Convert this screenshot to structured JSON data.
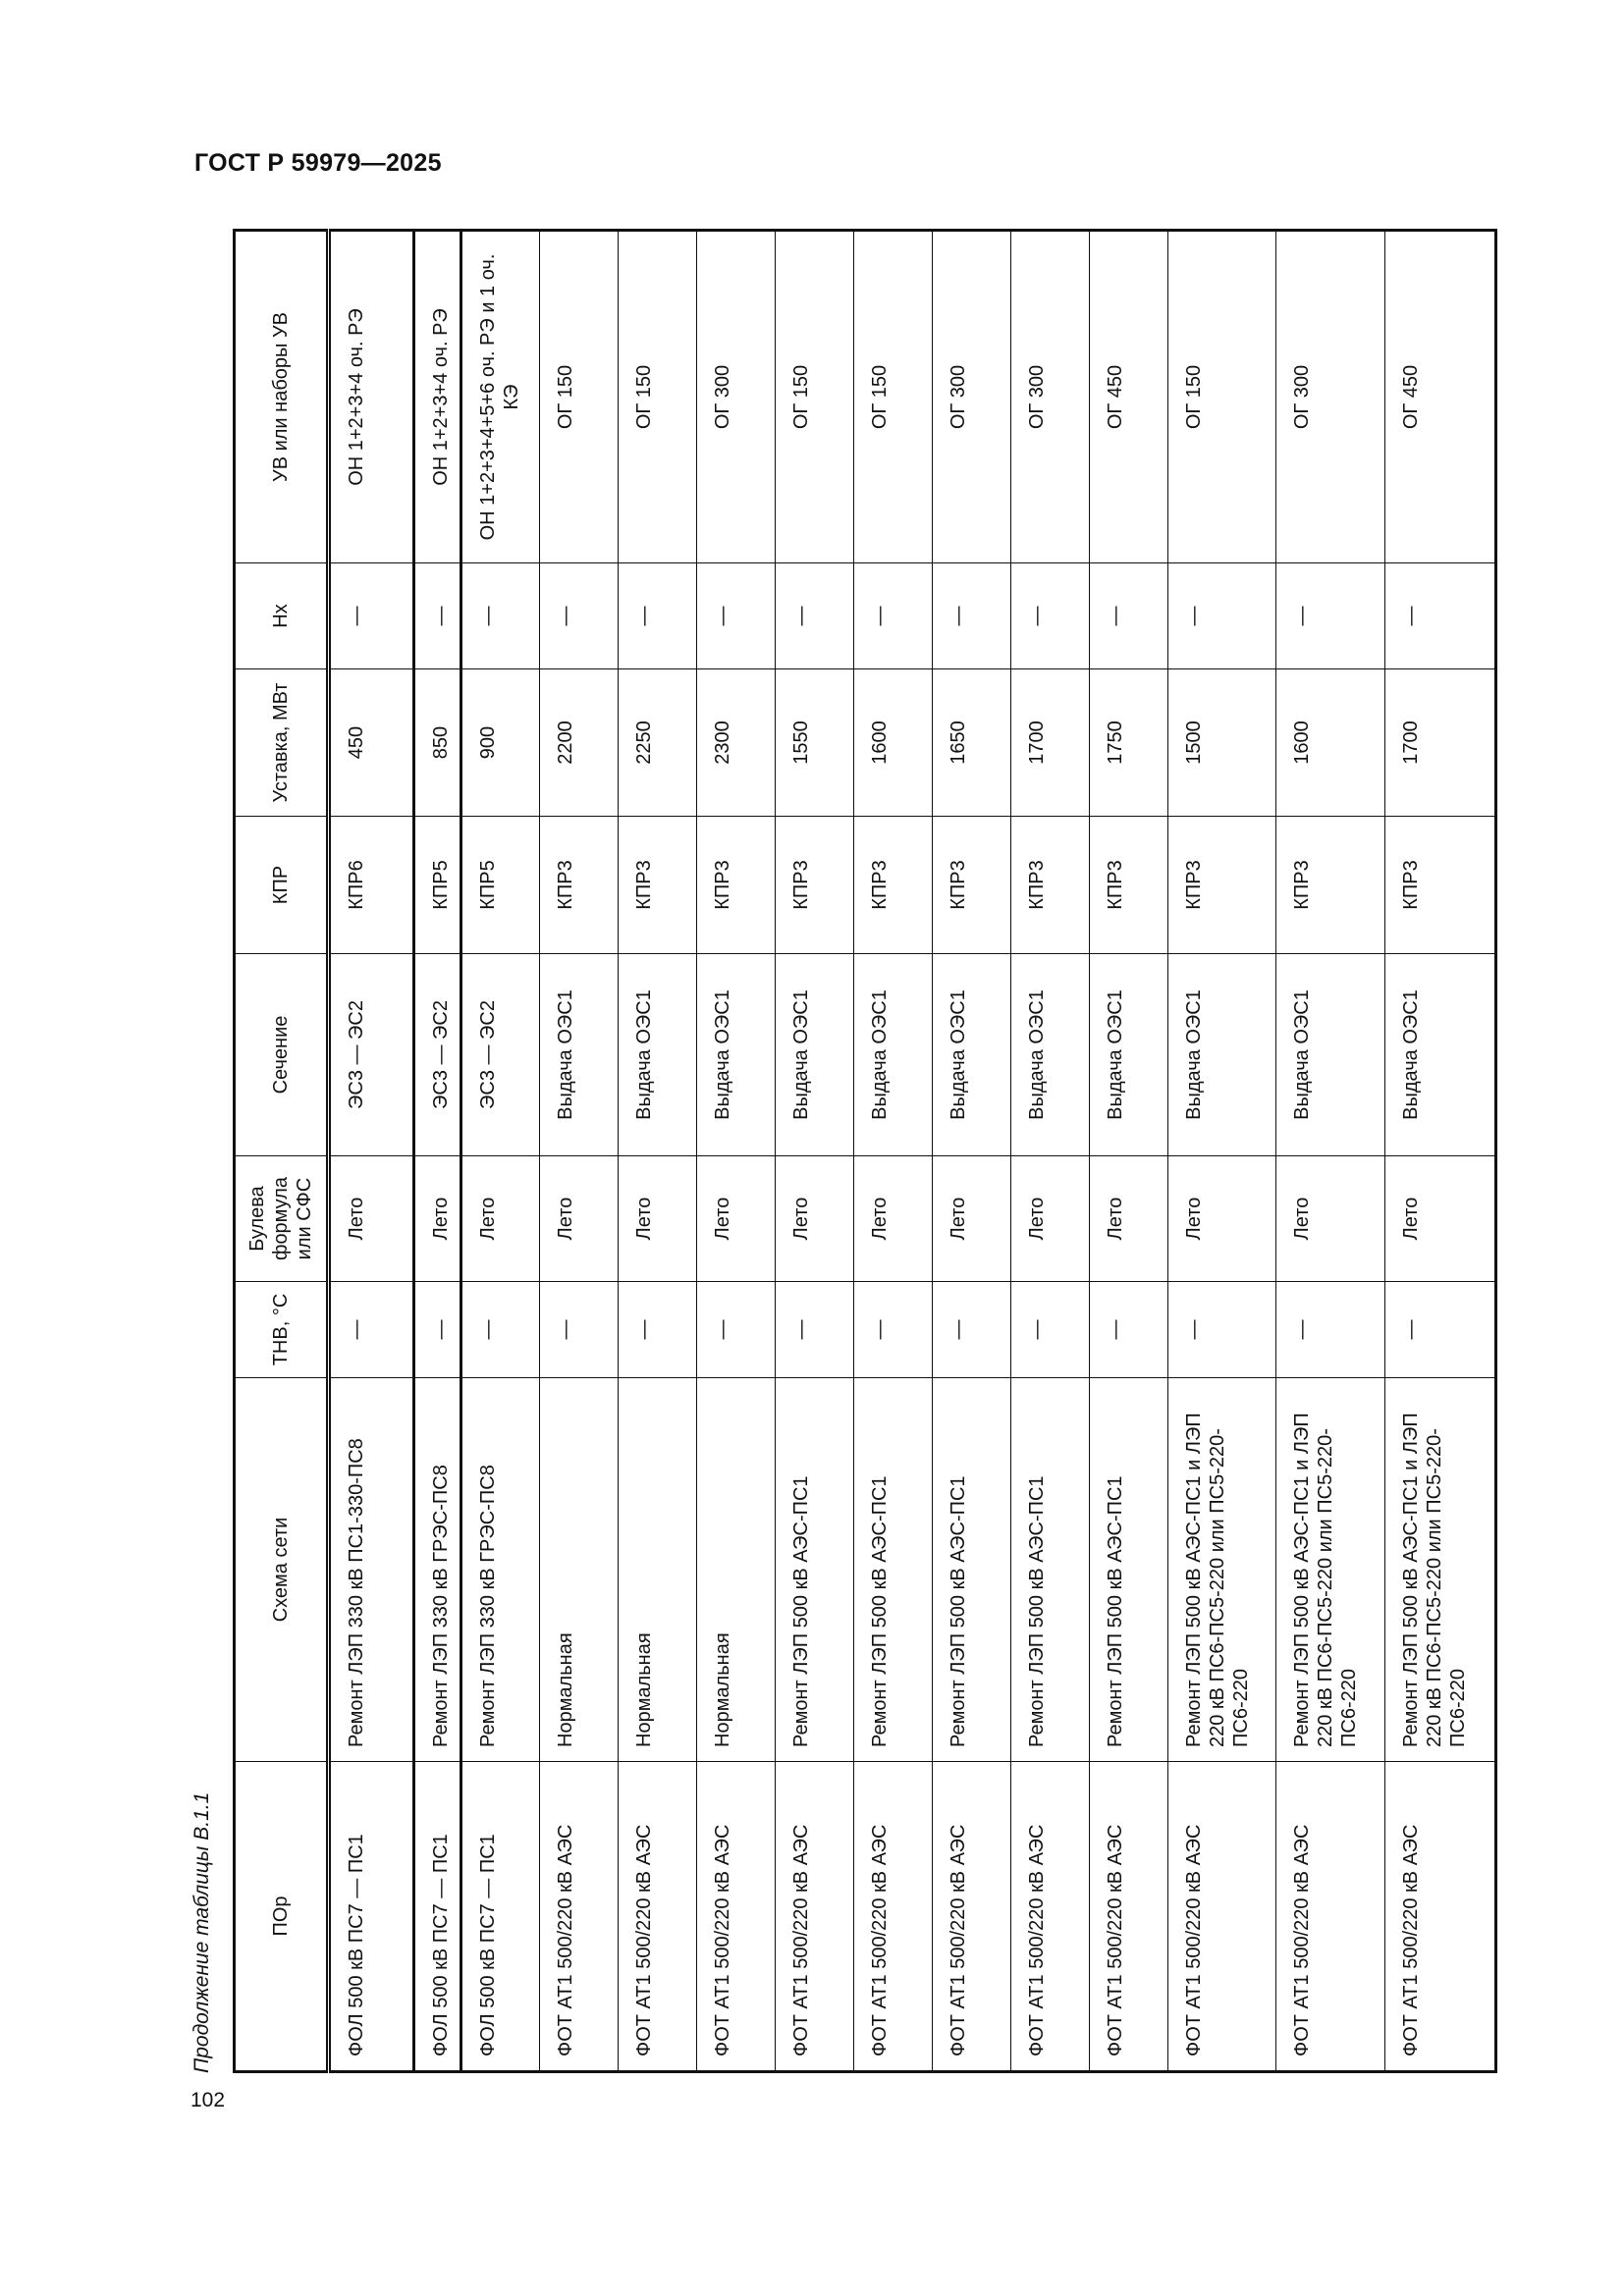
{
  "document": {
    "header": "ГОСТ Р 59979—2025",
    "caption": "Продолжение таблицы В.1.1",
    "page_number": "102"
  },
  "table": {
    "columns": [
      "ПОр",
      "Схема сети",
      "ТНВ, °С",
      "Булева формула или СФС",
      "Сечение",
      "КПР",
      "Уставка, МВт",
      "Нх",
      "УВ или наборы УВ"
    ],
    "rows": [
      [
        "ФОЛ 500 кВ ПС7 — ПС1",
        "Ремонт ЛЭП 330 кВ ПС1-330-ПС8",
        "—",
        "Лето",
        "ЭС3 — ЭС2",
        "КПР6",
        "450",
        "—",
        "ОН 1+2+3+4 оч. РЭ"
      ],
      [
        "ФОЛ 500 кВ ПС7 — ПС1",
        "Ремонт ЛЭП 330 кВ ГРЭС-ПС8",
        "—",
        "Лето",
        "ЭС3 — ЭС2",
        "КПР5",
        "850",
        "—",
        "ОН 1+2+3+4 оч. РЭ"
      ],
      [
        "ФОЛ 500 кВ ПС7 — ПС1",
        "Ремонт ЛЭП 330 кВ ГРЭС-ПС8",
        "—",
        "Лето",
        "ЭС3 — ЭС2",
        "КПР5",
        "900",
        "—",
        "ОН 1+2+3+4+5+6 оч. РЭ и 1 оч. КЭ"
      ],
      [
        "ФОТ АТ1 500/220 кВ АЭС",
        "Нормальная",
        "—",
        "Лето",
        "Выдача ОЭС1",
        "КПР3",
        "2200",
        "—",
        "ОГ 150"
      ],
      [
        "ФОТ АТ1 500/220 кВ АЭС",
        "Нормальная",
        "—",
        "Лето",
        "Выдача ОЭС1",
        "КПР3",
        "2250",
        "—",
        "ОГ 150"
      ],
      [
        "ФОТ АТ1 500/220 кВ АЭС",
        "Нормальная",
        "—",
        "Лето",
        "Выдача ОЭС1",
        "КПР3",
        "2300",
        "—",
        "ОГ 300"
      ],
      [
        "ФОТ АТ1 500/220 кВ АЭС",
        "Ремонт ЛЭП 500 кВ АЭС-ПС1",
        "—",
        "Лето",
        "Выдача ОЭС1",
        "КПР3",
        "1550",
        "—",
        "ОГ 150"
      ],
      [
        "ФОТ АТ1 500/220 кВ АЭС",
        "Ремонт ЛЭП 500 кВ АЭС-ПС1",
        "—",
        "Лето",
        "Выдача ОЭС1",
        "КПР3",
        "1600",
        "—",
        "ОГ 150"
      ],
      [
        "ФОТ АТ1 500/220 кВ АЭС",
        "Ремонт ЛЭП 500 кВ АЭС-ПС1",
        "—",
        "Лето",
        "Выдача ОЭС1",
        "КПР3",
        "1650",
        "—",
        "ОГ 300"
      ],
      [
        "ФОТ АТ1 500/220 кВ АЭС",
        "Ремонт ЛЭП 500 кВ АЭС-ПС1",
        "—",
        "Лето",
        "Выдача ОЭС1",
        "КПР3",
        "1700",
        "—",
        "ОГ 300"
      ],
      [
        "ФОТ АТ1 500/220 кВ АЭС",
        "Ремонт ЛЭП 500 кВ АЭС-ПС1",
        "—",
        "Лето",
        "Выдача ОЭС1",
        "КПР3",
        "1750",
        "—",
        "ОГ 450"
      ],
      [
        "ФОТ АТ1 500/220 кВ АЭС",
        "Ремонт ЛЭП 500 кВ АЭС-ПС1 и ЛЭП 220 кВ ПС6-ПС5-220 или ПС5-220-ПС6-220",
        "—",
        "Лето",
        "Выдача ОЭС1",
        "КПР3",
        "1500",
        "—",
        "ОГ 150"
      ],
      [
        "ФОТ АТ1 500/220 кВ АЭС",
        "Ремонт ЛЭП 500 кВ АЭС-ПС1 и ЛЭП 220 кВ ПС6-ПС5-220 или ПС5-220-ПС6-220",
        "—",
        "Лето",
        "Выдача ОЭС1",
        "КПР3",
        "1600",
        "—",
        "ОГ 300"
      ],
      [
        "ФОТ АТ1 500/220 кВ АЭС",
        "Ремонт ЛЭП 500 кВ АЭС-ПС1 и ЛЭП 220 кВ ПС6-ПС5-220 или ПС5-220-ПС6-220",
        "—",
        "Лето",
        "Выдача ОЭС1",
        "КПР3",
        "1700",
        "—",
        "ОГ 450"
      ]
    ]
  }
}
